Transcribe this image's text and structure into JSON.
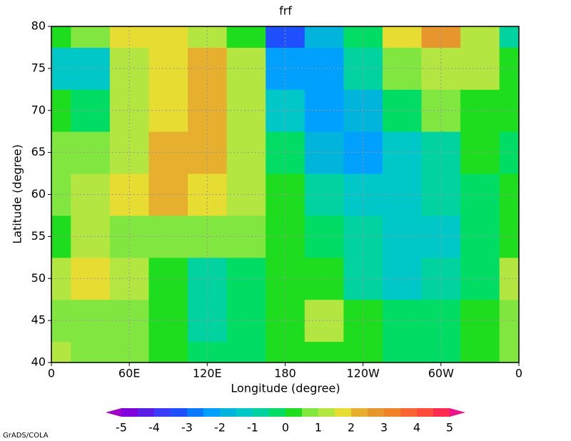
{
  "chart_data": {
    "type": "contourf",
    "title": "frf",
    "x_label": "Longitude (degree)",
    "y_label": "Latitude (degree)",
    "footer": "GrADS/COLA",
    "x": [
      0,
      30,
      60,
      90,
      120,
      150,
      180,
      210,
      240,
      270,
      300,
      330,
      360
    ],
    "y": [
      40,
      45,
      50,
      55,
      60,
      65,
      70,
      75,
      80
    ],
    "z": [
      [
        1,
        0.8,
        0.5,
        0.3,
        -0.3,
        -0.3,
        0.3,
        0.3,
        0.3,
        -0.2,
        -0.2,
        0.3,
        0.6
      ],
      [
        0.7,
        0.8,
        0.6,
        0.2,
        -0.6,
        -0.3,
        0.3,
        1.2,
        0.3,
        -0.3,
        -0.3,
        0.3,
        0.5
      ],
      [
        1,
        1.8,
        1.2,
        0.2,
        -0.8,
        -0.3,
        0.3,
        0.3,
        -0.6,
        -1.2,
        -0.7,
        -0.3,
        1
      ],
      [
        0.3,
        1.2,
        0.7,
        0.8,
        0.8,
        0.8,
        0.3,
        -0.3,
        -1,
        -1.5,
        -1.5,
        -0.3,
        0.3
      ],
      [
        0.5,
        1.2,
        1.5,
        2.2,
        1.8,
        1,
        0.3,
        -0.8,
        -1.5,
        -1.2,
        -1,
        -0.2,
        0.2
      ],
      [
        0.8,
        0.8,
        1.2,
        2,
        2.2,
        1.2,
        -0.3,
        -1.8,
        -2.2,
        -1.5,
        -0.8,
        0,
        -0.5
      ],
      [
        0,
        -0.3,
        1,
        1.8,
        2.2,
        1,
        -1.5,
        -2.2,
        -2,
        -0.5,
        0.5,
        0.3,
        0
      ],
      [
        -1.5,
        -1.2,
        1,
        1.8,
        2.2,
        1,
        -2.2,
        -2.2,
        -1,
        0.5,
        1.2,
        1,
        0
      ],
      [
        0,
        0.5,
        1.5,
        1.8,
        1,
        0.3,
        -3.5,
        -2,
        -0.3,
        1.5,
        2.5,
        1,
        -1
      ]
    ],
    "xlim": [
      0,
      360
    ],
    "ylim": [
      40,
      80
    ],
    "xticks": [
      0,
      {
        "value": 60,
        "label": "60E"
      },
      {
        "value": 120,
        "label": "120E"
      },
      180,
      {
        "value": 240,
        "label": "120W"
      },
      {
        "value": 300,
        "label": "60W"
      },
      {
        "value": 360,
        "label": "0"
      }
    ],
    "yticks": [
      40,
      45,
      50,
      55,
      60,
      65,
      70,
      75,
      80
    ],
    "grid": true,
    "levels": [
      -5,
      -4.5,
      -4,
      -3.5,
      -3,
      -2.5,
      -2,
      -1.5,
      -1,
      -0.5,
      0,
      0.5,
      1,
      1.5,
      2,
      2.5,
      3,
      3.5,
      4,
      4.5,
      5
    ],
    "colorbar_ticks": [
      -5,
      -4,
      -3,
      -2,
      -1,
      0,
      1,
      2,
      3,
      4,
      5
    ],
    "colors": [
      "#a000c8",
      "#8200dc",
      "#5a1ee6",
      "#3c3cff",
      "#1e50ff",
      "#0a78ff",
      "#00a0ff",
      "#00b4dc",
      "#00c8c8",
      "#00d2a0",
      "#00dc64",
      "#1edc1e",
      "#82e641",
      "#b4e641",
      "#e6dc32",
      "#e6af2d",
      "#e6962d",
      "#f08228",
      "#fa6432",
      "#ff4a3c",
      "#ff2a50",
      "#f0148c"
    ]
  }
}
